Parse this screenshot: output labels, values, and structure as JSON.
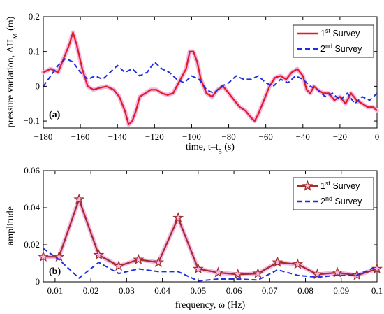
{
  "chart_data": [
    {
      "type": "line",
      "panel_label": "(a)",
      "xlabel": "time, t–t5 (s)",
      "ylabel": "pressure variation, ΔH_M (m)",
      "xlim": [
        -180,
        0
      ],
      "ylim": [
        -0.12,
        0.2
      ],
      "xticks": [
        "−180",
        "−160",
        "−140",
        "−120",
        "−100",
        "−80",
        "−60",
        "−40",
        "−20",
        "0"
      ],
      "yticks": [
        "−0.1",
        "0",
        "0.1",
        "0.2"
      ],
      "legend_position": "top-right",
      "grid": false,
      "series": [
        {
          "name": "1st Survey",
          "color": "#dd1f1f",
          "x": [
            -180,
            -176,
            -172,
            -169,
            -166,
            -164,
            -162,
            -159,
            -156,
            -153,
            -150,
            -146,
            -142,
            -139,
            -136,
            -134,
            -132,
            -130,
            -128,
            -125,
            -122,
            -119,
            -116,
            -113,
            -110,
            -106,
            -103,
            -101,
            -99,
            -97,
            -95,
            -92,
            -89,
            -86,
            -83,
            -80,
            -77,
            -74,
            -71,
            -68,
            -66,
            -64,
            -61,
            -58,
            -55,
            -52,
            -49,
            -46,
            -43,
            -40,
            -38,
            -36,
            -34,
            -32,
            -29,
            -26,
            -23,
            -20,
            -17,
            -14,
            -11,
            -8,
            -5,
            -2,
            0
          ],
          "y": [
            0.04,
            0.05,
            0.04,
            0.08,
            0.12,
            0.155,
            0.12,
            0.05,
            0.0,
            -0.01,
            -0.005,
            0.0,
            -0.01,
            -0.03,
            -0.07,
            -0.11,
            -0.1,
            -0.07,
            -0.03,
            -0.02,
            -0.01,
            -0.01,
            -0.02,
            -0.025,
            -0.02,
            0.02,
            0.05,
            0.1,
            0.1,
            0.07,
            0.02,
            -0.02,
            -0.03,
            -0.01,
            0.0,
            -0.02,
            -0.04,
            -0.06,
            -0.07,
            -0.09,
            -0.1,
            -0.08,
            -0.04,
            0.0,
            0.025,
            0.03,
            0.02,
            0.04,
            0.05,
            0.03,
            -0.01,
            -0.02,
            0.0,
            -0.01,
            -0.02,
            -0.02,
            -0.04,
            -0.03,
            -0.05,
            -0.02,
            -0.04,
            -0.05,
            -0.06,
            -0.06,
            -0.07
          ]
        },
        {
          "name": "2nd Survey",
          "color": "#1f2fe0",
          "x": [
            -180,
            -176,
            -172,
            -168,
            -164,
            -160,
            -156,
            -152,
            -148,
            -144,
            -140,
            -136,
            -132,
            -128,
            -124,
            -120,
            -116,
            -112,
            -108,
            -104,
            -100,
            -96,
            -92,
            -88,
            -84,
            -80,
            -76,
            -72,
            -68,
            -64,
            -60,
            -56,
            -52,
            -48,
            -44,
            -40,
            -36,
            -32,
            -28,
            -24,
            -20,
            -16,
            -12,
            -8,
            -4,
            0
          ],
          "y": [
            0.0,
            0.03,
            0.06,
            0.08,
            0.07,
            0.04,
            0.02,
            0.03,
            0.02,
            0.04,
            0.06,
            0.04,
            0.05,
            0.03,
            0.04,
            0.07,
            0.05,
            0.04,
            0.02,
            0.01,
            0.03,
            0.02,
            -0.01,
            -0.02,
            0.0,
            0.01,
            0.03,
            0.02,
            0.02,
            0.03,
            0.01,
            0.0,
            0.02,
            0.01,
            0.03,
            0.02,
            0.0,
            -0.01,
            -0.03,
            -0.02,
            -0.04,
            -0.02,
            -0.05,
            -0.03,
            -0.04,
            -0.02
          ]
        }
      ]
    },
    {
      "type": "line",
      "panel_label": "(b)",
      "xlabel": "frequency, ω (Hz)",
      "ylabel": "amplitude",
      "xlim": [
        0.0067,
        0.1
      ],
      "ylim": [
        0,
        0.06
      ],
      "xticks": [
        "0.01",
        "0.02",
        "0.03",
        "0.04",
        "0.05",
        "0.06",
        "0.07",
        "0.08",
        "0.09",
        "0.1"
      ],
      "yticks": [
        "0",
        "0.02",
        "0.04",
        "0.06"
      ],
      "legend_position": "top-right",
      "grid": false,
      "series": [
        {
          "name": "1st Survey",
          "color": "#a32d2a",
          "marker": "star",
          "x": [
            0.0067,
            0.0111,
            0.0167,
            0.0222,
            0.0278,
            0.0333,
            0.0389,
            0.0444,
            0.05,
            0.0556,
            0.0611,
            0.0667,
            0.0722,
            0.0778,
            0.0833,
            0.0889,
            0.0944,
            0.1
          ],
          "y": [
            0.0135,
            0.0135,
            0.0445,
            0.0145,
            0.0085,
            0.012,
            0.0105,
            0.0345,
            0.007,
            0.005,
            0.004,
            0.0045,
            0.0105,
            0.0095,
            0.004,
            0.005,
            0.0035,
            0.007
          ]
        },
        {
          "name": "2nd Survey",
          "color": "#1f2fe0",
          "x": [
            0.0067,
            0.0111,
            0.0167,
            0.0222,
            0.0278,
            0.0333,
            0.0389,
            0.0444,
            0.05,
            0.0556,
            0.0611,
            0.0667,
            0.0722,
            0.0778,
            0.0833,
            0.0889,
            0.0944,
            0.1
          ],
          "y": [
            0.018,
            0.012,
            0.002,
            0.0105,
            0.0045,
            0.007,
            0.0055,
            0.0055,
            0.0005,
            0.0015,
            0.0015,
            0.001,
            0.0065,
            0.0035,
            0.0025,
            0.0035,
            0.0035,
            0.0085
          ]
        }
      ]
    }
  ]
}
